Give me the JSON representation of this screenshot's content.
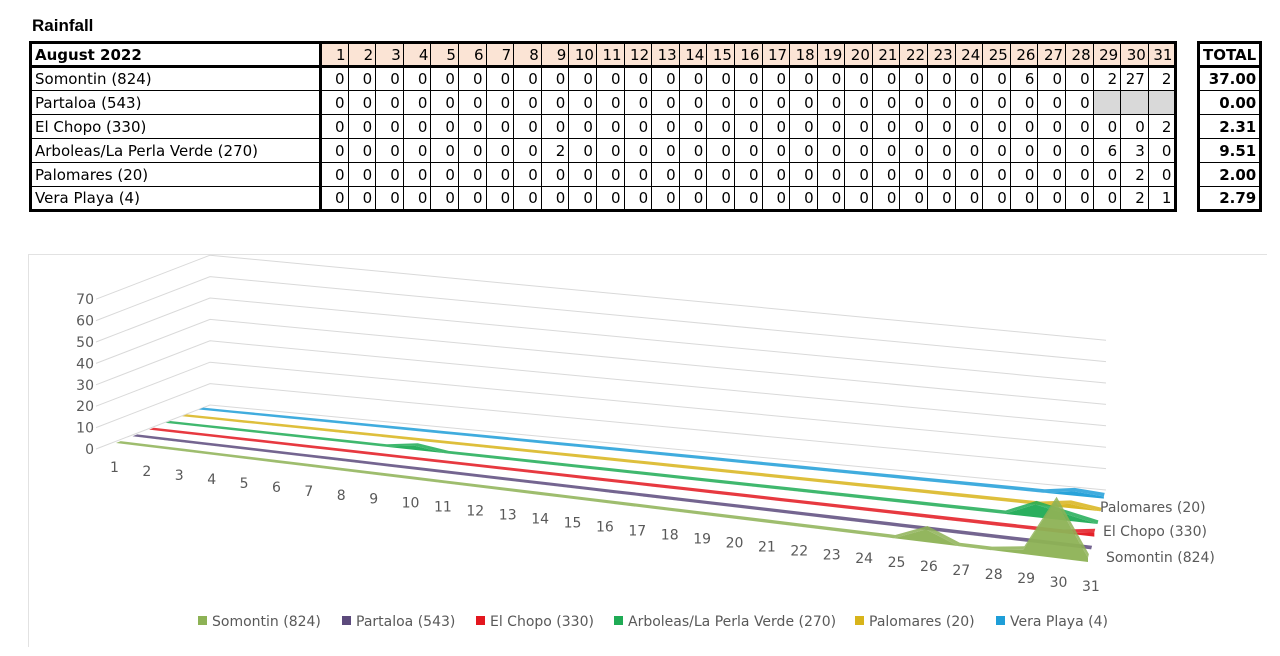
{
  "title": "Rainfall",
  "table": {
    "header_label": "August 2022",
    "days": [
      "1",
      "2",
      "3",
      "4",
      "5",
      "6",
      "7",
      "8",
      "9",
      "10",
      "11",
      "12",
      "13",
      "14",
      "15",
      "16",
      "17",
      "18",
      "19",
      "20",
      "21",
      "22",
      "23",
      "24",
      "25",
      "26",
      "27",
      "28",
      "29",
      "30",
      "31"
    ],
    "total_label": "TOTAL",
    "rows": [
      {
        "name": "Somontin (824)",
        "values": [
          "0",
          "0",
          "0",
          "0",
          "0",
          "0",
          "0",
          "0",
          "0",
          "0",
          "0",
          "0",
          "0",
          "0",
          "0",
          "0",
          "0",
          "0",
          "0",
          "0",
          "0",
          "0",
          "0",
          "0",
          "0",
          "6",
          "0",
          "0",
          "2",
          "27",
          "2"
        ],
        "total": "37.00"
      },
      {
        "name": "Partaloa (543)",
        "values": [
          "0",
          "0",
          "0",
          "0",
          "0",
          "0",
          "0",
          "0",
          "0",
          "0",
          "0",
          "0",
          "0",
          "0",
          "0",
          "0",
          "0",
          "0",
          "0",
          "0",
          "0",
          "0",
          "0",
          "0",
          "0",
          "0",
          "0",
          "0",
          "",
          "",
          ""
        ],
        "total": "0.00"
      },
      {
        "name": "El Chopo (330)",
        "values": [
          "0",
          "0",
          "0",
          "0",
          "0",
          "0",
          "0",
          "0",
          "0",
          "0",
          "0",
          "0",
          "0",
          "0",
          "0",
          "0",
          "0",
          "0",
          "0",
          "0",
          "0",
          "0",
          "0",
          "0",
          "0",
          "0",
          "0",
          "0",
          "0",
          "0",
          "2"
        ],
        "total": "2.31"
      },
      {
        "name": "Arboleas/La Perla Verde (270)",
        "values": [
          "0",
          "0",
          "0",
          "0",
          "0",
          "0",
          "0",
          "0",
          "2",
          "0",
          "0",
          "0",
          "0",
          "0",
          "0",
          "0",
          "0",
          "0",
          "0",
          "0",
          "0",
          "0",
          "0",
          "0",
          "0",
          "0",
          "0",
          "0",
          "6",
          "3",
          "0"
        ],
        "total": "9.51"
      },
      {
        "name": "Palomares (20)",
        "values": [
          "0",
          "0",
          "0",
          "0",
          "0",
          "0",
          "0",
          "0",
          "0",
          "0",
          "0",
          "0",
          "0",
          "0",
          "0",
          "0",
          "0",
          "0",
          "0",
          "0",
          "0",
          "0",
          "0",
          "0",
          "0",
          "0",
          "0",
          "0",
          "0",
          "2",
          "0"
        ],
        "total": "2.00"
      },
      {
        "name": "Vera Playa (4)",
        "values": [
          "0",
          "0",
          "0",
          "0",
          "0",
          "0",
          "0",
          "0",
          "0",
          "0",
          "0",
          "0",
          "0",
          "0",
          "0",
          "0",
          "0",
          "0",
          "0",
          "0",
          "0",
          "0",
          "0",
          "0",
          "0",
          "0",
          "0",
          "0",
          "0",
          "2",
          "1"
        ],
        "total": "2.79"
      }
    ]
  },
  "chart_data": {
    "type": "area",
    "subtype": "3d-area",
    "title": "",
    "xlabel": "",
    "ylabel": "",
    "ylim": [
      0,
      70
    ],
    "yticks": [
      0,
      10,
      20,
      30,
      40,
      50,
      60,
      70
    ],
    "categories": [
      "1",
      "2",
      "3",
      "4",
      "5",
      "6",
      "7",
      "8",
      "9",
      "10",
      "11",
      "12",
      "13",
      "14",
      "15",
      "16",
      "17",
      "18",
      "19",
      "20",
      "21",
      "22",
      "23",
      "24",
      "25",
      "26",
      "27",
      "28",
      "29",
      "30",
      "31"
    ],
    "series": [
      {
        "name": "Somontin (824)",
        "color": "#8db255",
        "values": [
          0,
          0,
          0,
          0,
          0,
          0,
          0,
          0,
          0,
          0,
          0,
          0,
          0,
          0,
          0,
          0,
          0,
          0,
          0,
          0,
          0,
          0,
          0,
          0,
          0,
          6,
          0,
          0,
          2,
          27,
          2
        ]
      },
      {
        "name": "Partaloa (543)",
        "color": "#5c4a7c",
        "values": [
          0,
          0,
          0,
          0,
          0,
          0,
          0,
          0,
          0,
          0,
          0,
          0,
          0,
          0,
          0,
          0,
          0,
          0,
          0,
          0,
          0,
          0,
          0,
          0,
          0,
          0,
          0,
          0,
          0,
          0,
          0
        ]
      },
      {
        "name": "El Chopo (330)",
        "color": "#e3161e",
        "values": [
          0,
          0,
          0,
          0,
          0,
          0,
          0,
          0,
          0,
          0,
          0,
          0,
          0,
          0,
          0,
          0,
          0,
          0,
          0,
          0,
          0,
          0,
          0,
          0,
          0,
          0,
          0,
          0,
          0,
          0,
          2
        ]
      },
      {
        "name": "Arboleas/La Perla Verde (270)",
        "color": "#1fab55",
        "values": [
          0,
          0,
          0,
          0,
          0,
          0,
          0,
          0,
          2,
          0,
          0,
          0,
          0,
          0,
          0,
          0,
          0,
          0,
          0,
          0,
          0,
          0,
          0,
          0,
          0,
          0,
          0,
          0,
          6,
          3,
          0
        ]
      },
      {
        "name": "Palomares (20)",
        "color": "#d8b41a",
        "values": [
          0,
          0,
          0,
          0,
          0,
          0,
          0,
          0,
          0,
          0,
          0,
          0,
          0,
          0,
          0,
          0,
          0,
          0,
          0,
          0,
          0,
          0,
          0,
          0,
          0,
          0,
          0,
          0,
          0,
          2,
          0
        ]
      },
      {
        "name": "Vera Playa (4)",
        "color": "#1e9ed8",
        "values": [
          0,
          0,
          0,
          0,
          0,
          0,
          0,
          0,
          0,
          0,
          0,
          0,
          0,
          0,
          0,
          0,
          0,
          0,
          0,
          0,
          0,
          0,
          0,
          0,
          0,
          0,
          0,
          0,
          0,
          2,
          1
        ]
      }
    ],
    "depth_axis_labels": [
      "Palomares (20)",
      "El Chopo (330)",
      "Somontin (824)"
    ],
    "legend_position": "bottom"
  }
}
